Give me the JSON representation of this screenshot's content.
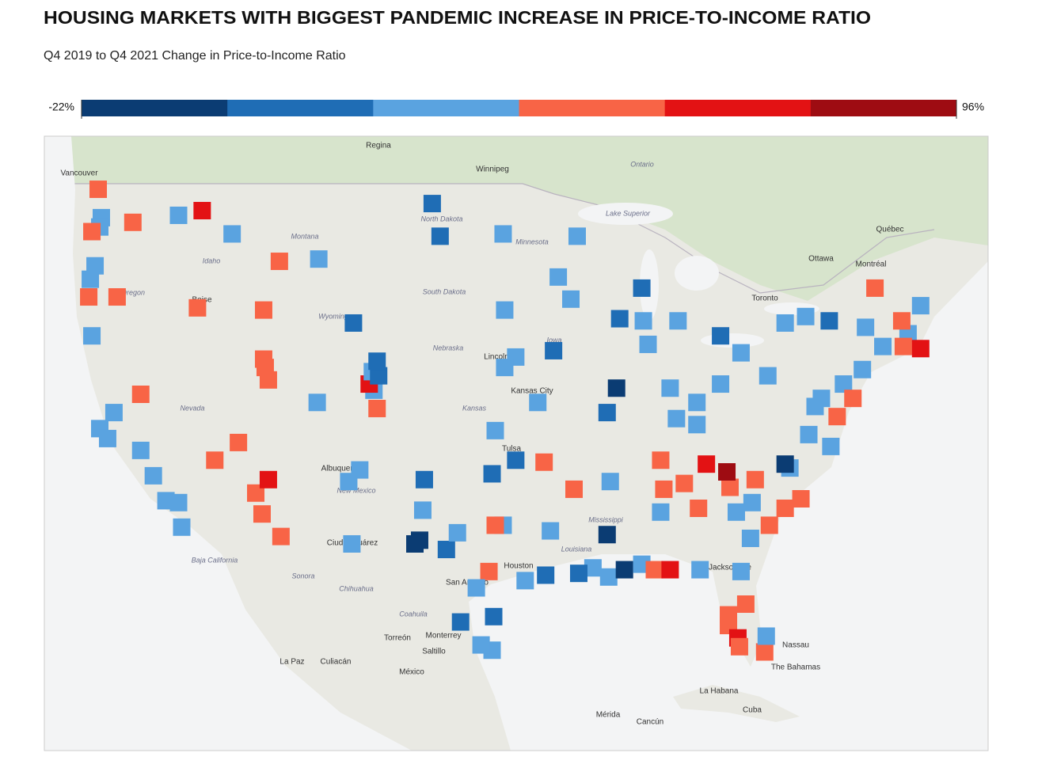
{
  "title": "HOUSING MARKETS WITH BIGGEST PANDEMIC INCREASE IN PRICE-TO-INCOME RATIO",
  "subtitle": "Q4 2019 to Q4 2021 Change in Price-to-Income Ratio",
  "legend": {
    "min": {
      "value": -22,
      "label": "-22%"
    },
    "max": {
      "value": 96,
      "label": "96%"
    },
    "colors": [
      "#0b3c73",
      "#1f6db5",
      "#5aa3e0",
      "#f86446",
      "#e31214",
      "#9e0c12"
    ]
  },
  "markets": [
    {
      "lon": -122.3,
      "lat": 47.6,
      "value": 27
    },
    {
      "lon": -122.4,
      "lat": 47.2,
      "value": 27
    },
    {
      "lon": -122.5,
      "lat": 48.8,
      "value": 47
    },
    {
      "lon": -122.9,
      "lat": 47.0,
      "value": 47
    },
    {
      "lon": -120.3,
      "lat": 47.4,
      "value": 47
    },
    {
      "lon": -117.4,
      "lat": 47.7,
      "value": 27
    },
    {
      "lon": -115.9,
      "lat": 47.9,
      "value": 66
    },
    {
      "lon": -114.0,
      "lat": 46.9,
      "value": 27
    },
    {
      "lon": -111.0,
      "lat": 45.7,
      "value": 47
    },
    {
      "lon": -108.5,
      "lat": 45.8,
      "value": 27
    },
    {
      "lon": -122.7,
      "lat": 45.5,
      "value": 27
    },
    {
      "lon": -123.0,
      "lat": 44.9,
      "value": 27
    },
    {
      "lon": -123.1,
      "lat": 44.1,
      "value": 47
    },
    {
      "lon": -121.3,
      "lat": 44.1,
      "value": 47
    },
    {
      "lon": -122.9,
      "lat": 42.3,
      "value": 27
    },
    {
      "lon": -116.2,
      "lat": 43.6,
      "value": 47
    },
    {
      "lon": -112.0,
      "lat": 43.5,
      "value": 47
    },
    {
      "lon": -119.8,
      "lat": 39.5,
      "value": 47
    },
    {
      "lon": -121.5,
      "lat": 38.6,
      "value": 27
    },
    {
      "lon": -122.4,
      "lat": 37.8,
      "value": 27
    },
    {
      "lon": -121.9,
      "lat": 37.3,
      "value": 27
    },
    {
      "lon": -119.8,
      "lat": 36.7,
      "value": 27
    },
    {
      "lon": -119.0,
      "lat": 35.4,
      "value": 27
    },
    {
      "lon": -118.2,
      "lat": 34.1,
      "value": 27
    },
    {
      "lon": -117.4,
      "lat": 34.0,
      "value": 27
    },
    {
      "lon": -117.2,
      "lat": 32.7,
      "value": 27
    },
    {
      "lon": -115.1,
      "lat": 36.2,
      "value": 47
    },
    {
      "lon": -113.6,
      "lat": 37.1,
      "value": 47
    },
    {
      "lon": -111.9,
      "lat": 40.8,
      "value": 47
    },
    {
      "lon": -111.7,
      "lat": 40.2,
      "value": 47
    },
    {
      "lon": -112.0,
      "lat": 41.2,
      "value": 47
    },
    {
      "lon": -112.1,
      "lat": 33.4,
      "value": 47
    },
    {
      "lon": -112.5,
      "lat": 34.5,
      "value": 47
    },
    {
      "lon": -111.7,
      "lat": 35.2,
      "value": 66
    },
    {
      "lon": -110.9,
      "lat": 32.2,
      "value": 47
    },
    {
      "lon": -105.0,
      "lat": 39.7,
      "value": 27
    },
    {
      "lon": -104.8,
      "lat": 38.8,
      "value": 47
    },
    {
      "lon": -105.3,
      "lat": 40.0,
      "value": 66
    },
    {
      "lon": -105.1,
      "lat": 40.6,
      "value": 27
    },
    {
      "lon": -104.7,
      "lat": 40.4,
      "value": 8
    },
    {
      "lon": -108.6,
      "lat": 39.1,
      "value": 27
    },
    {
      "lon": -106.6,
      "lat": 35.1,
      "value": 27
    },
    {
      "lon": -105.9,
      "lat": 35.7,
      "value": 27
    },
    {
      "lon": -106.4,
      "lat": 31.8,
      "value": 27
    },
    {
      "lon": -104.8,
      "lat": 41.1,
      "value": 8
    },
    {
      "lon": -106.3,
      "lat": 42.9,
      "value": 8
    },
    {
      "lon": -96.8,
      "lat": 46.9,
      "value": 27
    },
    {
      "lon": -100.8,
      "lat": 46.8,
      "value": 8
    },
    {
      "lon": -101.3,
      "lat": 48.2,
      "value": 8
    },
    {
      "lon": -96.7,
      "lat": 43.5,
      "value": 27
    },
    {
      "lon": -93.3,
      "lat": 45.0,
      "value": 27
    },
    {
      "lon": -92.1,
      "lat": 46.8,
      "value": 27
    },
    {
      "lon": -92.5,
      "lat": 44.0,
      "value": 27
    },
    {
      "lon": -93.6,
      "lat": 41.6,
      "value": 8
    },
    {
      "lon": -96.0,
      "lat": 41.3,
      "value": 27
    },
    {
      "lon": -96.7,
      "lat": 40.8,
      "value": 27
    },
    {
      "lon": -94.6,
      "lat": 39.1,
      "value": 27
    },
    {
      "lon": -97.3,
      "lat": 37.7,
      "value": 27
    },
    {
      "lon": -97.5,
      "lat": 35.5,
      "value": 8
    },
    {
      "lon": -96.0,
      "lat": 36.2,
      "value": 8
    },
    {
      "lon": -101.8,
      "lat": 35.2,
      "value": 8
    },
    {
      "lon": -101.9,
      "lat": 33.6,
      "value": 27
    },
    {
      "lon": -102.1,
      "lat": 32.0,
      "value": -12
    },
    {
      "lon": -102.4,
      "lat": 31.8,
      "value": -12
    },
    {
      "lon": -100.4,
      "lat": 31.5,
      "value": 8
    },
    {
      "lon": -99.7,
      "lat": 32.4,
      "value": 27
    },
    {
      "lon": -96.8,
      "lat": 32.8,
      "value": 27
    },
    {
      "lon": -97.3,
      "lat": 32.8,
      "value": 47
    },
    {
      "lon": -97.7,
      "lat": 30.3,
      "value": 47
    },
    {
      "lon": -98.5,
      "lat": 29.4,
      "value": 27
    },
    {
      "lon": -95.4,
      "lat": 29.8,
      "value": 27
    },
    {
      "lon": -94.1,
      "lat": 30.1,
      "value": 8
    },
    {
      "lon": -97.4,
      "lat": 27.8,
      "value": 8
    },
    {
      "lon": -97.5,
      "lat": 25.9,
      "value": 27
    },
    {
      "lon": -98.2,
      "lat": 26.2,
      "value": 27
    },
    {
      "lon": -99.5,
      "lat": 27.5,
      "value": 8
    },
    {
      "lon": -93.8,
      "lat": 32.5,
      "value": 27
    },
    {
      "lon": -91.1,
      "lat": 30.5,
      "value": 27
    },
    {
      "lon": -90.1,
      "lat": 30.0,
      "value": 27
    },
    {
      "lon": -92.0,
      "lat": 30.2,
      "value": 8
    },
    {
      "lon": -90.2,
      "lat": 32.3,
      "value": -12
    },
    {
      "lon": -89.1,
      "lat": 30.4,
      "value": -12
    },
    {
      "lon": -88.0,
      "lat": 30.7,
      "value": 27
    },
    {
      "lon": -87.2,
      "lat": 30.4,
      "value": 47
    },
    {
      "lon": -92.3,
      "lat": 34.7,
      "value": 47
    },
    {
      "lon": -94.2,
      "lat": 36.1,
      "value": 47
    },
    {
      "lon": -90.0,
      "lat": 35.1,
      "value": 27
    },
    {
      "lon": -86.8,
      "lat": 36.2,
      "value": 47
    },
    {
      "lon": -83.9,
      "lat": 36.0,
      "value": 66
    },
    {
      "lon": -85.3,
      "lat": 35.0,
      "value": 47
    },
    {
      "lon": -86.8,
      "lat": 33.5,
      "value": 27
    },
    {
      "lon": -86.6,
      "lat": 34.7,
      "value": 47
    },
    {
      "lon": -84.4,
      "lat": 33.7,
      "value": 47
    },
    {
      "lon": -82.0,
      "lat": 33.5,
      "value": 27
    },
    {
      "lon": -81.1,
      "lat": 32.1,
      "value": 27
    },
    {
      "lon": -79.9,
      "lat": 32.8,
      "value": 47
    },
    {
      "lon": -81.0,
      "lat": 34.0,
      "value": 27
    },
    {
      "lon": -82.4,
      "lat": 34.8,
      "value": 47
    },
    {
      "lon": -82.6,
      "lat": 35.6,
      "value": 86
    },
    {
      "lon": -80.8,
      "lat": 35.2,
      "value": 47
    },
    {
      "lon": -78.6,
      "lat": 35.8,
      "value": 27
    },
    {
      "lon": -78.9,
      "lat": 36.0,
      "value": -12
    },
    {
      "lon": -77.9,
      "lat": 34.2,
      "value": 47
    },
    {
      "lon": -78.9,
      "lat": 33.7,
      "value": 47
    },
    {
      "lon": -81.7,
      "lat": 30.3,
      "value": 27
    },
    {
      "lon": -81.4,
      "lat": 28.5,
      "value": 47
    },
    {
      "lon": -82.5,
      "lat": 27.9,
      "value": 47
    },
    {
      "lon": -82.5,
      "lat": 27.3,
      "value": 47
    },
    {
      "lon": -81.9,
      "lat": 26.6,
      "value": 66
    },
    {
      "lon": -81.8,
      "lat": 26.1,
      "value": 47
    },
    {
      "lon": -80.2,
      "lat": 25.8,
      "value": 47
    },
    {
      "lon": -80.1,
      "lat": 26.7,
      "value": 27
    },
    {
      "lon": -84.3,
      "lat": 30.4,
      "value": 27
    },
    {
      "lon": -86.2,
      "lat": 30.4,
      "value": 66
    },
    {
      "lon": -90.2,
      "lat": 38.6,
      "value": 8
    },
    {
      "lon": -89.6,
      "lat": 39.8,
      "value": -12
    },
    {
      "lon": -87.6,
      "lat": 41.9,
      "value": 27
    },
    {
      "lon": -87.9,
      "lat": 43.0,
      "value": 27
    },
    {
      "lon": -89.4,
      "lat": 43.1,
      "value": 8
    },
    {
      "lon": -88.0,
      "lat": 44.5,
      "value": 8
    },
    {
      "lon": -86.2,
      "lat": 39.8,
      "value": 27
    },
    {
      "lon": -85.8,
      "lat": 38.3,
      "value": 27
    },
    {
      "lon": -84.5,
      "lat": 38.0,
      "value": 27
    },
    {
      "lon": -84.5,
      "lat": 39.1,
      "value": 27
    },
    {
      "lon": -83.0,
      "lat": 40.0,
      "value": 27
    },
    {
      "lon": -81.7,
      "lat": 41.5,
      "value": 27
    },
    {
      "lon": -83.0,
      "lat": 42.3,
      "value": 8
    },
    {
      "lon": -85.7,
      "lat": 43.0,
      "value": 27
    },
    {
      "lon": -80.0,
      "lat": 40.4,
      "value": 27
    },
    {
      "lon": -78.9,
      "lat": 42.9,
      "value": 27
    },
    {
      "lon": -77.6,
      "lat": 43.2,
      "value": 27
    },
    {
      "lon": -76.1,
      "lat": 43.0,
      "value": 8
    },
    {
      "lon": -73.8,
      "lat": 42.7,
      "value": 27
    },
    {
      "lon": -74.0,
      "lat": 40.7,
      "value": 27
    },
    {
      "lon": -75.2,
      "lat": 40.0,
      "value": 27
    },
    {
      "lon": -76.6,
      "lat": 39.3,
      "value": 27
    },
    {
      "lon": -77.0,
      "lat": 38.9,
      "value": 27
    },
    {
      "lon": -77.4,
      "lat": 37.5,
      "value": 27
    },
    {
      "lon": -76.0,
      "lat": 36.9,
      "value": 27
    },
    {
      "lon": -72.7,
      "lat": 41.8,
      "value": 27
    },
    {
      "lon": -71.1,
      "lat": 42.4,
      "value": 27
    },
    {
      "lon": -71.4,
      "lat": 41.8,
      "value": 47
    },
    {
      "lon": -70.3,
      "lat": 43.7,
      "value": 27
    },
    {
      "lon": -73.2,
      "lat": 44.5,
      "value": 47
    },
    {
      "lon": -70.3,
      "lat": 41.7,
      "value": 66
    },
    {
      "lon": -71.5,
      "lat": 43.0,
      "value": 47
    },
    {
      "lon": -75.6,
      "lat": 38.4,
      "value": 47
    },
    {
      "lon": -74.6,
      "lat": 39.3,
      "value": 47
    }
  ],
  "places": [
    "Regina",
    "Winnipeg",
    "Vancouver",
    "Ottawa",
    "Montréal",
    "Québec",
    "Toronto",
    "Boise",
    "Tulsa",
    "Albuquerque",
    "Ciudad Juárez",
    "Houston",
    "San Antonio",
    "Monterrey",
    "Torreón",
    "Saltillo",
    "La Paz",
    "Culiacán",
    "México",
    "Mérida",
    "Cancún",
    "La Habana",
    "Cuba",
    "Nassau",
    "The Bahamas",
    "Jacksonville",
    "Kansas City",
    "Lincoln"
  ],
  "regions": [
    "Montana",
    "Wyoming",
    "Nebraska",
    "Kansas",
    "Nevada",
    "New Mexico",
    "North Dakota",
    "South Dakota",
    "Minnesota",
    "Iowa",
    "Louisiana",
    "Mississippi",
    "Oregon",
    "Idaho",
    "Chihuahua",
    "Sonora",
    "Baja California",
    "Coahuila",
    "Lake Superior",
    "Ontario"
  ]
}
